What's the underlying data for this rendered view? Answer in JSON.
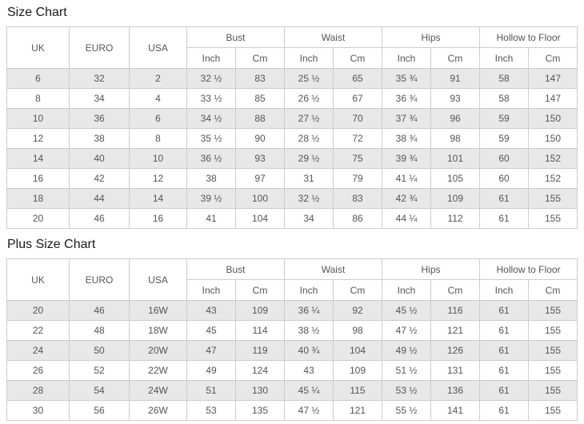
{
  "colors": {
    "background": "#ffffff",
    "row_shade": "#e8e8e8",
    "border": "#cccccc",
    "cell_text": "#555555",
    "title_text": "#1a1a1a"
  },
  "header": {
    "uk": "UK",
    "euro": "EURO",
    "usa": "USA",
    "groups": [
      "Bust",
      "Waist",
      "Hips",
      "Hollow to Floor"
    ],
    "inch": "Inch",
    "cm": "Cm"
  },
  "size_chart": {
    "title": "Size Chart",
    "rows": [
      [
        "6",
        "32",
        "2",
        "32 ½",
        "83",
        "25 ½",
        "65",
        "35 ¾",
        "91",
        "58",
        "147"
      ],
      [
        "8",
        "34",
        "4",
        "33 ½",
        "85",
        "26 ½",
        "67",
        "36 ¾",
        "93",
        "58",
        "147"
      ],
      [
        "10",
        "36",
        "6",
        "34 ½",
        "88",
        "27 ½",
        "70",
        "37 ¾",
        "96",
        "59",
        "150"
      ],
      [
        "12",
        "38",
        "8",
        "35 ½",
        "90",
        "28 ½",
        "72",
        "38 ¾",
        "98",
        "59",
        "150"
      ],
      [
        "14",
        "40",
        "10",
        "36 ½",
        "93",
        "29 ½",
        "75",
        "39 ¾",
        "101",
        "60",
        "152"
      ],
      [
        "16",
        "42",
        "12",
        "38",
        "97",
        "31",
        "79",
        "41 ¼",
        "105",
        "60",
        "152"
      ],
      [
        "18",
        "44",
        "14",
        "39 ½",
        "100",
        "32 ½",
        "83",
        "42 ¾",
        "109",
        "61",
        "155"
      ],
      [
        "20",
        "46",
        "16",
        "41",
        "104",
        "34",
        "86",
        "44 ¼",
        "112",
        "61",
        "155"
      ]
    ]
  },
  "plus_size_chart": {
    "title": "Plus Size Chart",
    "rows": [
      [
        "20",
        "46",
        "16W",
        "43",
        "109",
        "36 ¼",
        "92",
        "45 ½",
        "116",
        "61",
        "155"
      ],
      [
        "22",
        "48",
        "18W",
        "45",
        "114",
        "38 ½",
        "98",
        "47 ½",
        "121",
        "61",
        "155"
      ],
      [
        "24",
        "50",
        "20W",
        "47",
        "119",
        "40 ¾",
        "104",
        "49 ½",
        "126",
        "61",
        "155"
      ],
      [
        "26",
        "52",
        "22W",
        "49",
        "124",
        "43",
        "109",
        "51 ½",
        "131",
        "61",
        "155"
      ],
      [
        "28",
        "54",
        "24W",
        "51",
        "130",
        "45 ¼",
        "115",
        "53 ½",
        "136",
        "61",
        "155"
      ],
      [
        "30",
        "56",
        "26W",
        "53",
        "135",
        "47 ½",
        "121",
        "55 ½",
        "141",
        "61",
        "155"
      ]
    ]
  }
}
